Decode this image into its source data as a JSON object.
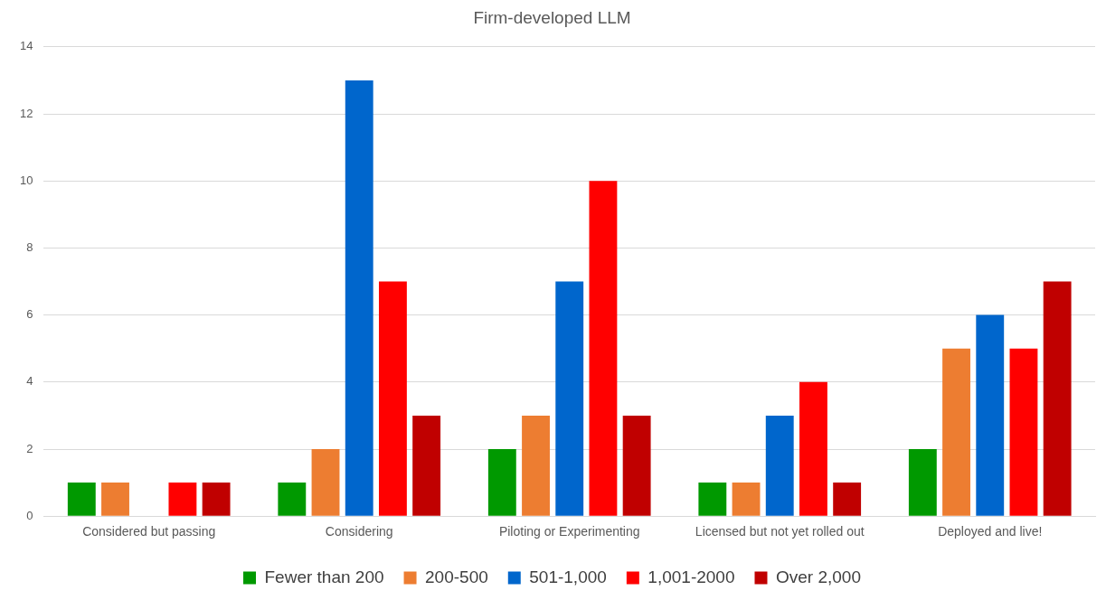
{
  "chart_data": {
    "type": "bar",
    "title": "Firm-developed LLM",
    "categories": [
      "Considered but passing",
      "Considering",
      "Piloting or Experimenting",
      "Licensed but not yet rolled out",
      "Deployed and live!"
    ],
    "series": [
      {
        "name": "Fewer than 200",
        "color": "#009900",
        "values": [
          1,
          1,
          2,
          1,
          2
        ]
      },
      {
        "name": "200-500",
        "color": "#ed7d31",
        "values": [
          1,
          2,
          3,
          1,
          5
        ]
      },
      {
        "name": "501-1,000",
        "color": "#0066cc",
        "values": [
          0,
          13,
          7,
          3,
          6
        ]
      },
      {
        "name": "1,001-2000",
        "color": "#ff0000",
        "values": [
          1,
          7,
          10,
          4,
          5
        ]
      },
      {
        "name": "Over 2,000",
        "color": "#c00000",
        "values": [
          1,
          3,
          3,
          1,
          7
        ]
      }
    ],
    "ylim": [
      0,
      14
    ],
    "yticks": [
      0,
      2,
      4,
      6,
      8,
      10,
      12,
      14
    ],
    "grid": "y",
    "legend": "bottom"
  }
}
